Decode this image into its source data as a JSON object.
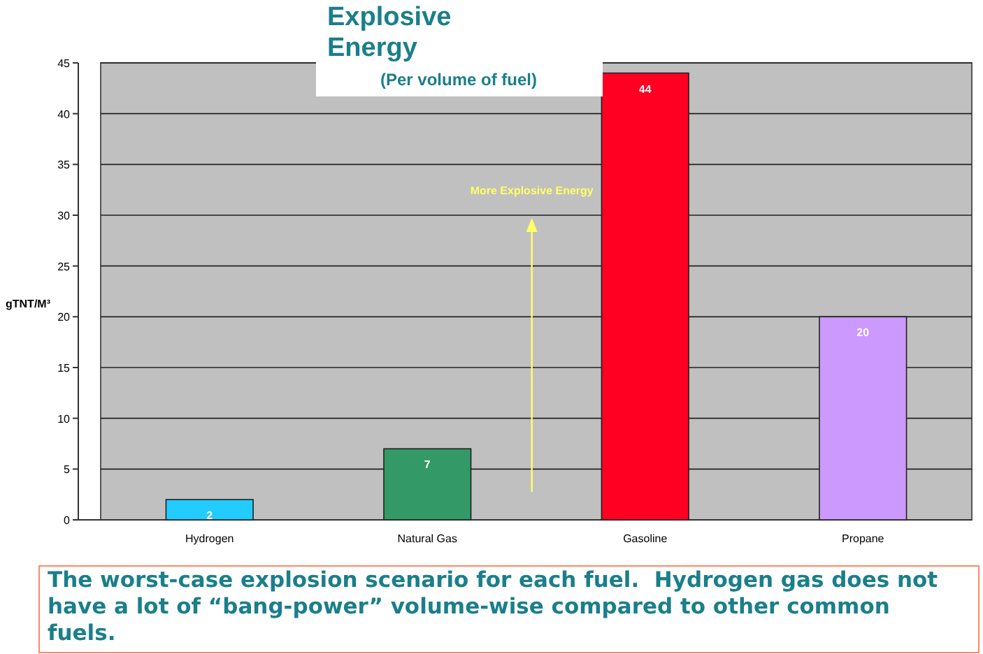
{
  "chart_data": {
    "type": "bar",
    "title": "Explosive Energy",
    "subtitle": "(Per volume of fuel)",
    "ylabel": "gTNT/M³",
    "categories": [
      "Hydrogen",
      "Natural Gas",
      "Gasoline",
      "Propane"
    ],
    "values": [
      2,
      7,
      44,
      20
    ],
    "colors": [
      "#22ccff",
      "#339966",
      "#ff0022",
      "#cc99ff"
    ],
    "ylim": [
      0,
      45
    ],
    "yticks": [
      0,
      5,
      10,
      15,
      20,
      25,
      30,
      35,
      40,
      45
    ],
    "grid": "y",
    "data_labels": true,
    "annotations": [
      "More Explosive Energy",
      "The worst-case explosion scenario for each fuel.  Hydrogen gas does not have a lot of “bang-power” volume-wise compared to other common fuels."
    ]
  }
}
